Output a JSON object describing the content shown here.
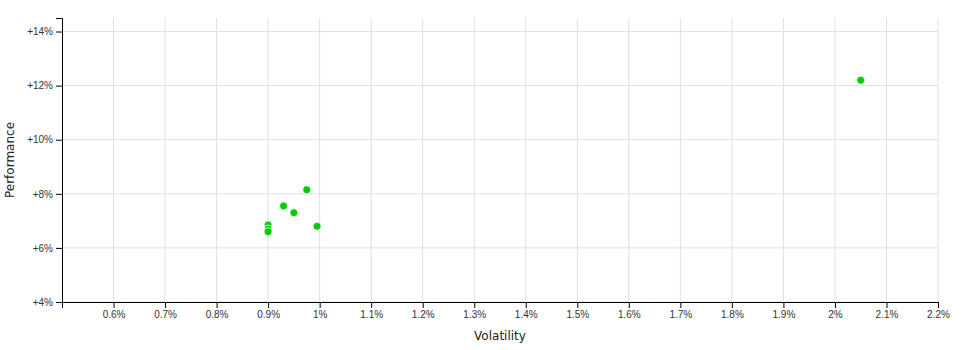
{
  "chart_data": {
    "type": "scatter",
    "xlabel": "Volatility",
    "ylabel": "Performance",
    "x": [
      0.009,
      0.009,
      0.009,
      0.0093,
      0.0095,
      0.00975,
      0.00995,
      0.0205
    ],
    "values": [
      0.0685,
      0.067,
      0.066,
      0.0755,
      0.073,
      0.0815,
      0.068,
      0.122
    ],
    "color": "#00cc00",
    "xlim": [
      0.005,
      0.022
    ],
    "ylim": [
      0.04,
      0.145
    ],
    "xticks": [
      {
        "value": 0.006,
        "label": "0.6%"
      },
      {
        "value": 0.007,
        "label": "0.7%"
      },
      {
        "value": 0.008,
        "label": "0.8%"
      },
      {
        "value": 0.009,
        "label": "0.9%"
      },
      {
        "value": 0.01,
        "label": "1%"
      },
      {
        "value": 0.011,
        "label": "1.1%"
      },
      {
        "value": 0.012,
        "label": "1.2%"
      },
      {
        "value": 0.013,
        "label": "1.3%"
      },
      {
        "value": 0.014,
        "label": "1.4%"
      },
      {
        "value": 0.015,
        "label": "1.5%"
      },
      {
        "value": 0.016,
        "label": "1.6%"
      },
      {
        "value": 0.017,
        "label": "1.7%"
      },
      {
        "value": 0.018,
        "label": "1.8%"
      },
      {
        "value": 0.019,
        "label": "1.9%"
      },
      {
        "value": 0.02,
        "label": "2%"
      },
      {
        "value": 0.021,
        "label": "2.1%"
      },
      {
        "value": 0.022,
        "label": "2.2%"
      }
    ],
    "yticks": [
      {
        "value": 0.04,
        "label": "+4%"
      },
      {
        "value": 0.06,
        "label": "+6%"
      },
      {
        "value": 0.08,
        "label": "+8%"
      },
      {
        "value": 0.1,
        "label": "+10%"
      },
      {
        "value": 0.12,
        "label": "+12%"
      },
      {
        "value": 0.14,
        "label": "+14%"
      }
    ],
    "grid": true
  }
}
